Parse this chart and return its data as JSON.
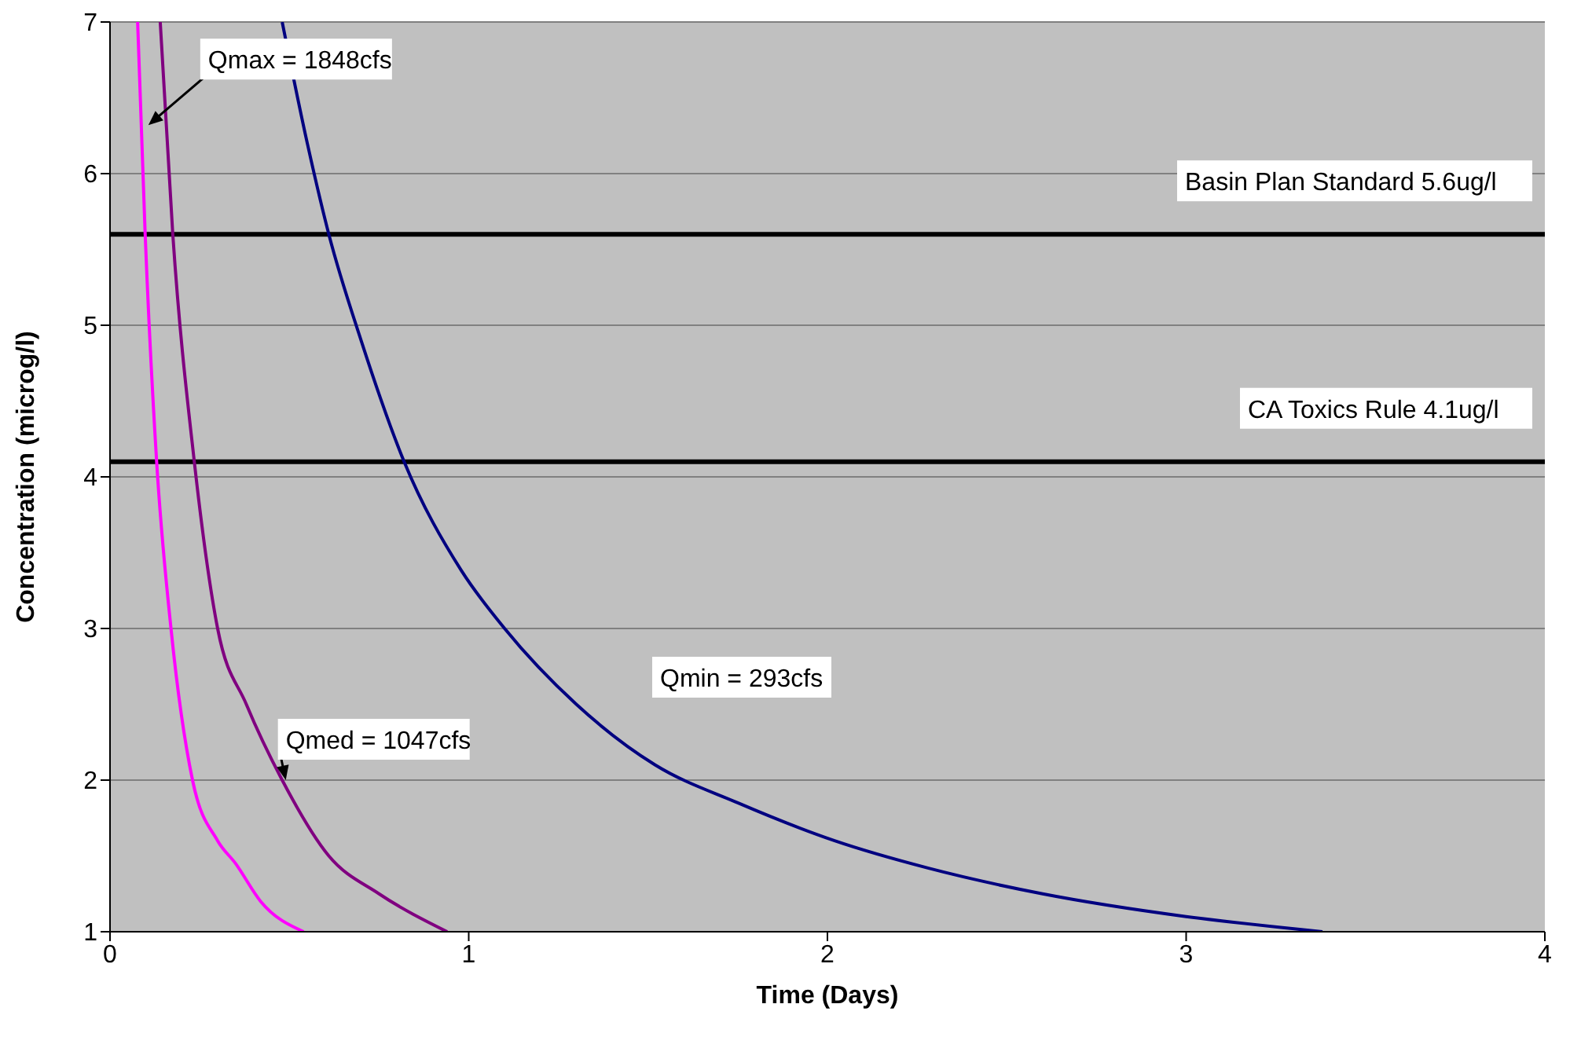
{
  "chart_data": {
    "type": "line",
    "xlabel": "Time (Days)",
    "ylabel": "Concentration (microg/l)",
    "xlim": [
      0,
      4
    ],
    "xticks": [
      0,
      1,
      2,
      3,
      4
    ],
    "ylim": [
      1,
      7
    ],
    "yticks": [
      1,
      2,
      3,
      4,
      5,
      6,
      7
    ],
    "grid": "y",
    "marker": "none",
    "line_style": "solid",
    "series": [
      {
        "color": "#ff00ff",
        "x": [
          0.077,
          0.098,
          0.13,
          0.17,
          0.23,
          0.3,
          0.35,
          0.42,
          0.54
        ],
        "values": [
          7,
          5.6,
          4.1,
          3,
          2,
          1.6,
          1.45,
          1.2,
          1
        ]
      },
      {
        "color": "#800080",
        "x": [
          0.14,
          0.175,
          0.235,
          0.3,
          0.38,
          0.48,
          0.61,
          0.75,
          0.94
        ],
        "values": [
          7,
          5.6,
          4.1,
          3,
          2.5,
          2,
          1.5,
          1.25,
          1
        ]
      },
      {
        "color": "#000080",
        "x": [
          0.48,
          0.55,
          0.61,
          0.7,
          0.82,
          0.98,
          1.1,
          1.3,
          1.52,
          1.75,
          2.02,
          2.28,
          2.6,
          3.0,
          3.38
        ],
        "values": [
          7,
          6.2,
          5.6,
          4.9,
          4.1,
          3.38,
          3,
          2.5,
          2.1,
          1.85,
          1.6,
          1.42,
          1.25,
          1.1,
          1
        ]
      }
    ],
    "ref_lines": [
      {
        "axis": "y",
        "value": 5.6,
        "label": "Basin Plan Standard 5.6ug/l",
        "color": "#000000"
      },
      {
        "axis": "y",
        "value": 4.1,
        "label": "CA Toxics Rule 4.1ug/l",
        "color": "#000000"
      }
    ],
    "annotations": [
      {
        "text": "Qmax = 1848cfs",
        "x": 0.107,
        "y": 6.32
      },
      {
        "text": "Qmed = 1047cfs",
        "x": 0.49,
        "y": 2.0
      },
      "Qmin = 293cfs"
    ]
  }
}
